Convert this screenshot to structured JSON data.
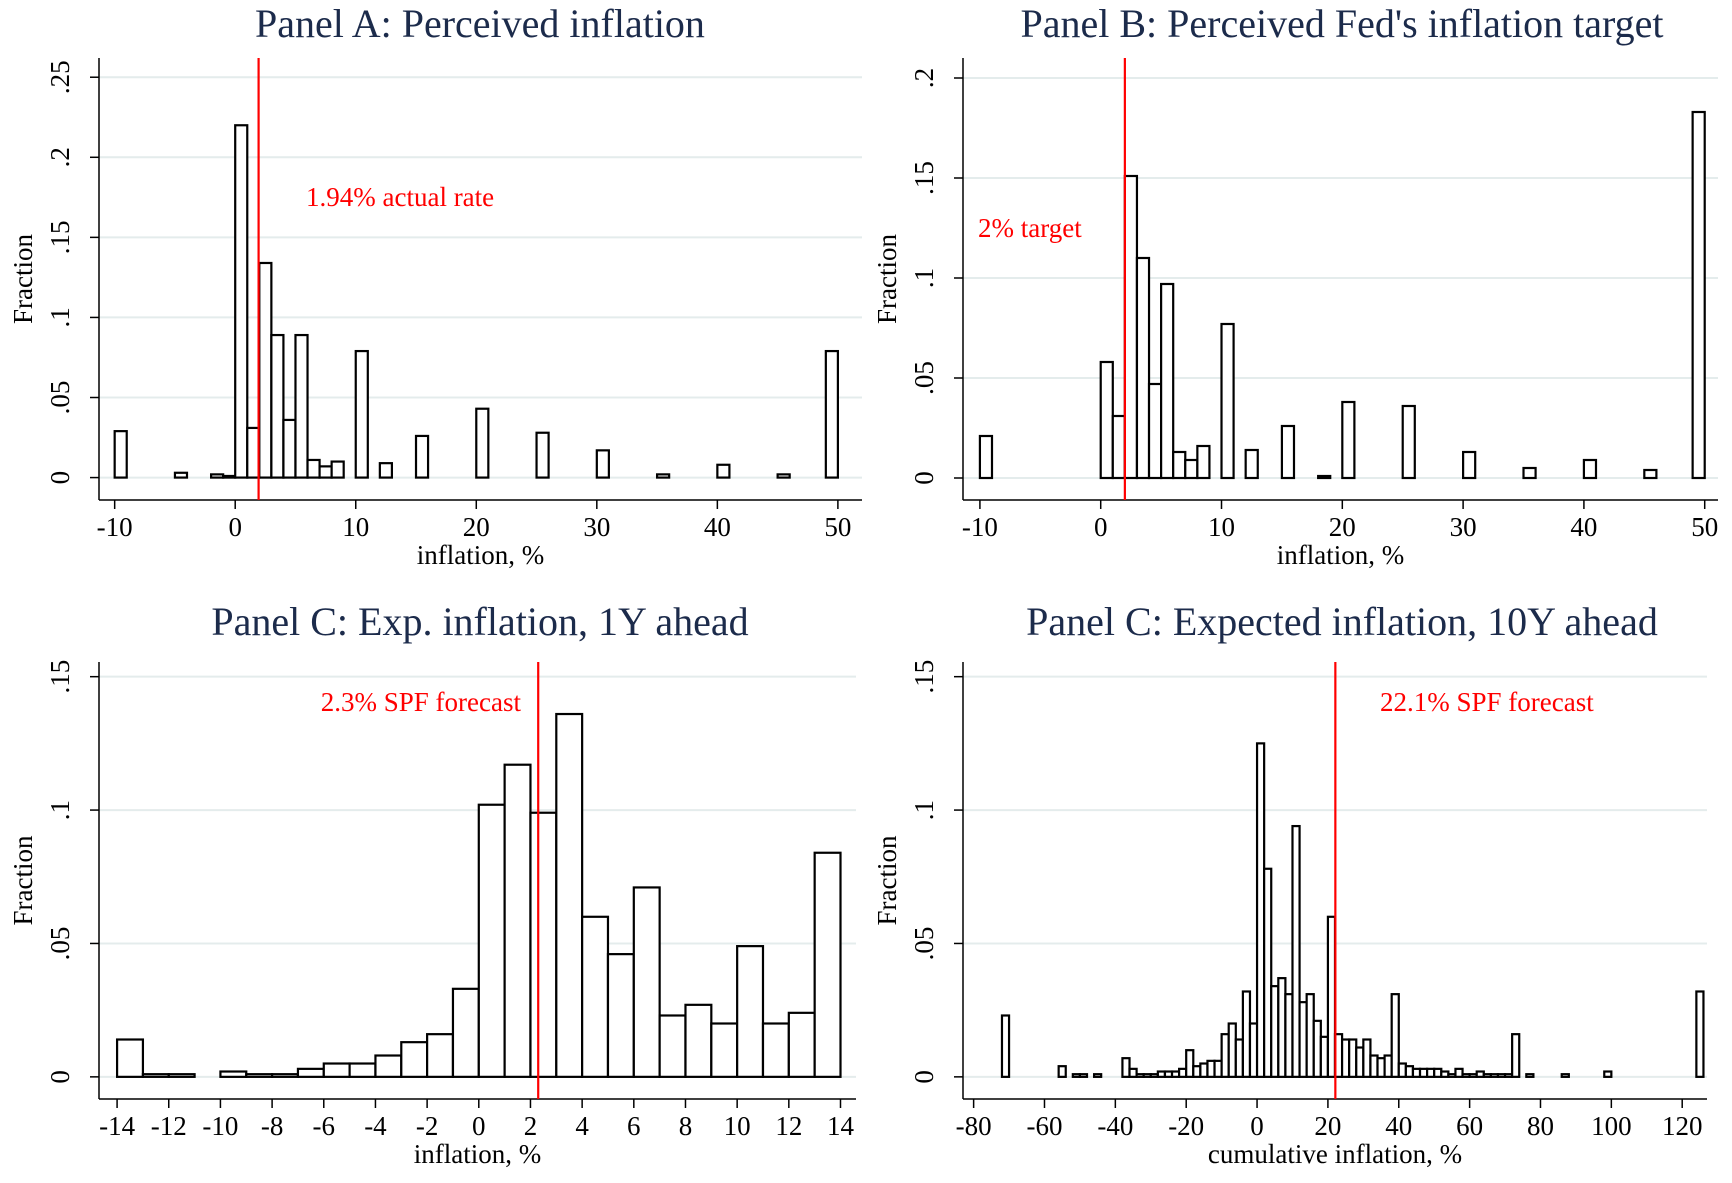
{
  "chart_data": [
    {
      "type": "bar",
      "title": "Panel A: Perceived inflation",
      "x_label": "inflation, %",
      "y_label": "Fraction",
      "x": [
        -10,
        -5,
        -2,
        -1,
        0,
        1,
        2,
        3,
        4,
        5,
        6,
        7,
        8,
        10,
        12,
        15,
        20,
        25,
        30,
        35,
        40,
        45,
        49
      ],
      "values": [
        0.029,
        0.003,
        0.002,
        0.001,
        0.22,
        0.031,
        0.134,
        0.089,
        0.036,
        0.089,
        0.011,
        0.007,
        0.01,
        0.079,
        0.009,
        0.026,
        0.043,
        0.028,
        0.017,
        0.002,
        0.008,
        0.002,
        0.079
      ],
      "color": "#ffffff",
      "edgecolor": "#000000",
      "ref_line": {
        "value": 1.94,
        "label": "1.94% actual rate",
        "color": "#ff0000"
      },
      "xlim": [
        -11.3,
        52
      ],
      "ylim": [
        -0.014,
        0.262
      ],
      "xticks": [
        -10,
        0,
        10,
        20,
        30,
        40,
        50
      ],
      "yticks": [
        0,
        {
          "value": 0.05,
          "label": ".05"
        },
        {
          "value": 0.1,
          "label": ".1"
        },
        {
          "value": 0.15,
          "label": ".15"
        },
        {
          "value": 0.2,
          "label": ".2"
        },
        {
          "value": 0.25,
          "label": ".25"
        }
      ],
      "grid": true
    },
    {
      "type": "bar",
      "title": "Panel B: Perceived Fed's inflation target",
      "x_label": "inflation, %",
      "y_label": "Fraction",
      "x": [
        -10,
        0,
        1,
        2,
        3,
        4,
        5,
        6,
        7,
        8,
        10,
        12,
        15,
        18,
        20,
        25,
        30,
        35,
        40,
        45,
        49
      ],
      "values": [
        0.021,
        0.058,
        0.031,
        0.151,
        0.11,
        0.047,
        0.097,
        0.013,
        0.009,
        0.016,
        0.077,
        0.014,
        0.026,
        0.001,
        0.038,
        0.036,
        0.013,
        0.005,
        0.009,
        0.004,
        0.183
      ],
      "color": "#ffffff",
      "edgecolor": "#000000",
      "ref_line": {
        "value": 2,
        "label": "2% target",
        "color": "#ff0000"
      },
      "xlim": [
        -11.4,
        51.1
      ],
      "ylim": [
        -0.011,
        0.21
      ],
      "xticks": [
        -10,
        0,
        10,
        20,
        30,
        40,
        50
      ],
      "yticks": [
        0,
        {
          "value": 0.05,
          "label": ".05"
        },
        {
          "value": 0.1,
          "label": ".1"
        },
        {
          "value": 0.15,
          "label": ".15"
        },
        {
          "value": 0.2,
          "label": ".2"
        }
      ],
      "grid": true
    },
    {
      "type": "bar",
      "title": "Panel C: Exp. inflation, 1Y ahead",
      "x_label": "inflation, %",
      "y_label": "Fraction",
      "x": [
        -14,
        -13,
        -12,
        -11,
        -10,
        -9,
        -8,
        -7,
        -6,
        -5,
        -4,
        -3,
        -2,
        -1,
        0,
        1,
        2,
        3,
        4,
        5,
        6,
        7,
        8,
        9,
        10,
        11,
        12,
        13
      ],
      "values": [
        0.014,
        0.001,
        0.001,
        0,
        0.002,
        0.001,
        0.001,
        0.003,
        0.005,
        0.005,
        0.008,
        0.013,
        0.016,
        0.033,
        0.102,
        0.117,
        0.099,
        0.136,
        0.06,
        0.046,
        0.071,
        0.023,
        0.027,
        0.02,
        0.049,
        0.02,
        0.024,
        0.084
      ],
      "color": "#ffffff",
      "edgecolor": "#000000",
      "ref_line": {
        "value": 2.3,
        "label": "2.3% SPF forecast",
        "color": "#ff0000"
      },
      "xlim": [
        -14.7,
        14.6
      ],
      "ylim": [
        -0.0083,
        0.1555
      ],
      "xticks": [
        -14,
        -12,
        -10,
        -8,
        -6,
        -4,
        -2,
        0,
        2,
        4,
        6,
        8,
        10,
        12,
        14
      ],
      "yticks": [
        0,
        {
          "value": 0.05,
          "label": ".05"
        },
        {
          "value": 0.1,
          "label": ".1"
        },
        {
          "value": 0.15,
          "label": ".15"
        }
      ],
      "grid": true
    },
    {
      "type": "bar",
      "title": "Panel C: Expected inflation, 10Y ahead",
      "x_label": "cumulative inflation, %",
      "y_label": "Fraction",
      "x": [
        -72,
        -56,
        -52,
        -50,
        -46,
        -38,
        -36,
        -34,
        -32,
        -30,
        -28,
        -26,
        -24,
        -22,
        -20,
        -18,
        -16,
        -14,
        -12,
        -10,
        -8,
        -6,
        -4,
        -2,
        0,
        2,
        4,
        6,
        8,
        10,
        12,
        14,
        16,
        18,
        20,
        22,
        24,
        26,
        28,
        30,
        32,
        34,
        36,
        38,
        40,
        42,
        44,
        46,
        48,
        50,
        52,
        54,
        56,
        58,
        60,
        62,
        64,
        66,
        68,
        70,
        72,
        76,
        86,
        98,
        124
      ],
      "values": [
        0.023,
        0.004,
        0.001,
        0.001,
        0.001,
        0.007,
        0.003,
        0.001,
        0.001,
        0.001,
        0.002,
        0.002,
        0.002,
        0.003,
        0.01,
        0.004,
        0.005,
        0.006,
        0.006,
        0.016,
        0.02,
        0.014,
        0.032,
        0.02,
        0.125,
        0.078,
        0.034,
        0.037,
        0.031,
        0.094,
        0.028,
        0.031,
        0.021,
        0.015,
        0.06,
        0.016,
        0.014,
        0.014,
        0.011,
        0.014,
        0.008,
        0.007,
        0.008,
        0.031,
        0.005,
        0.004,
        0.003,
        0.003,
        0.003,
        0.003,
        0.002,
        0.001,
        0.003,
        0.001,
        0.001,
        0.002,
        0.001,
        0.001,
        0.001,
        0.001,
        0.016,
        0.001,
        0.001,
        0.002,
        0.032
      ],
      "color": "#ffffff",
      "edgecolor": "#000000",
      "ref_line": {
        "value": 22.1,
        "label": "22.1% SPF forecast",
        "color": "#ff0000"
      },
      "xlim": [
        -83,
        127
      ],
      "ylim": [
        -0.0083,
        0.1555
      ],
      "xticks": [
        -80,
        -60,
        -40,
        -20,
        0,
        20,
        40,
        60,
        80,
        100,
        120
      ],
      "yticks": [
        0,
        {
          "value": 0.05,
          "label": ".05"
        },
        {
          "value": 0.1,
          "label": ".1"
        },
        {
          "value": 0.15,
          "label": ".15"
        }
      ],
      "grid": true
    }
  ]
}
